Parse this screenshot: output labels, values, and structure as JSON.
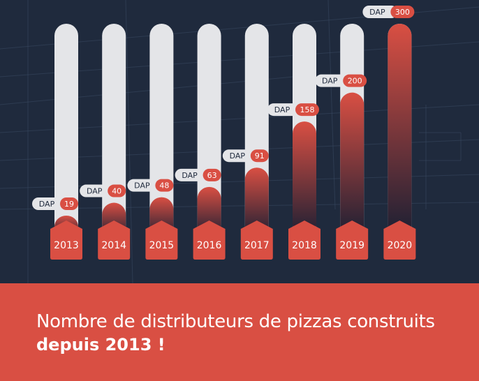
{
  "chart_data": {
    "type": "bar",
    "categories": [
      "2013",
      "2014",
      "2015",
      "2016",
      "2017",
      "2018",
      "2019",
      "2020"
    ],
    "values": [
      19,
      40,
      48,
      63,
      91,
      158,
      200,
      300
    ],
    "value_prefix": "DAP",
    "ylim": [
      0,
      300
    ],
    "grid": false,
    "legend": "none"
  },
  "caption": {
    "line1": "Nombre de distributeurs de pizzas construits",
    "line2": "depuis 2013 !"
  },
  "colors": {
    "background": "#1f2a3d",
    "track": "#e4e5e8",
    "accent": "#d94f43",
    "bar_top": "#d94f43",
    "bar_bottom": "#1b1f33",
    "label_pill": "#e4e5e8"
  }
}
